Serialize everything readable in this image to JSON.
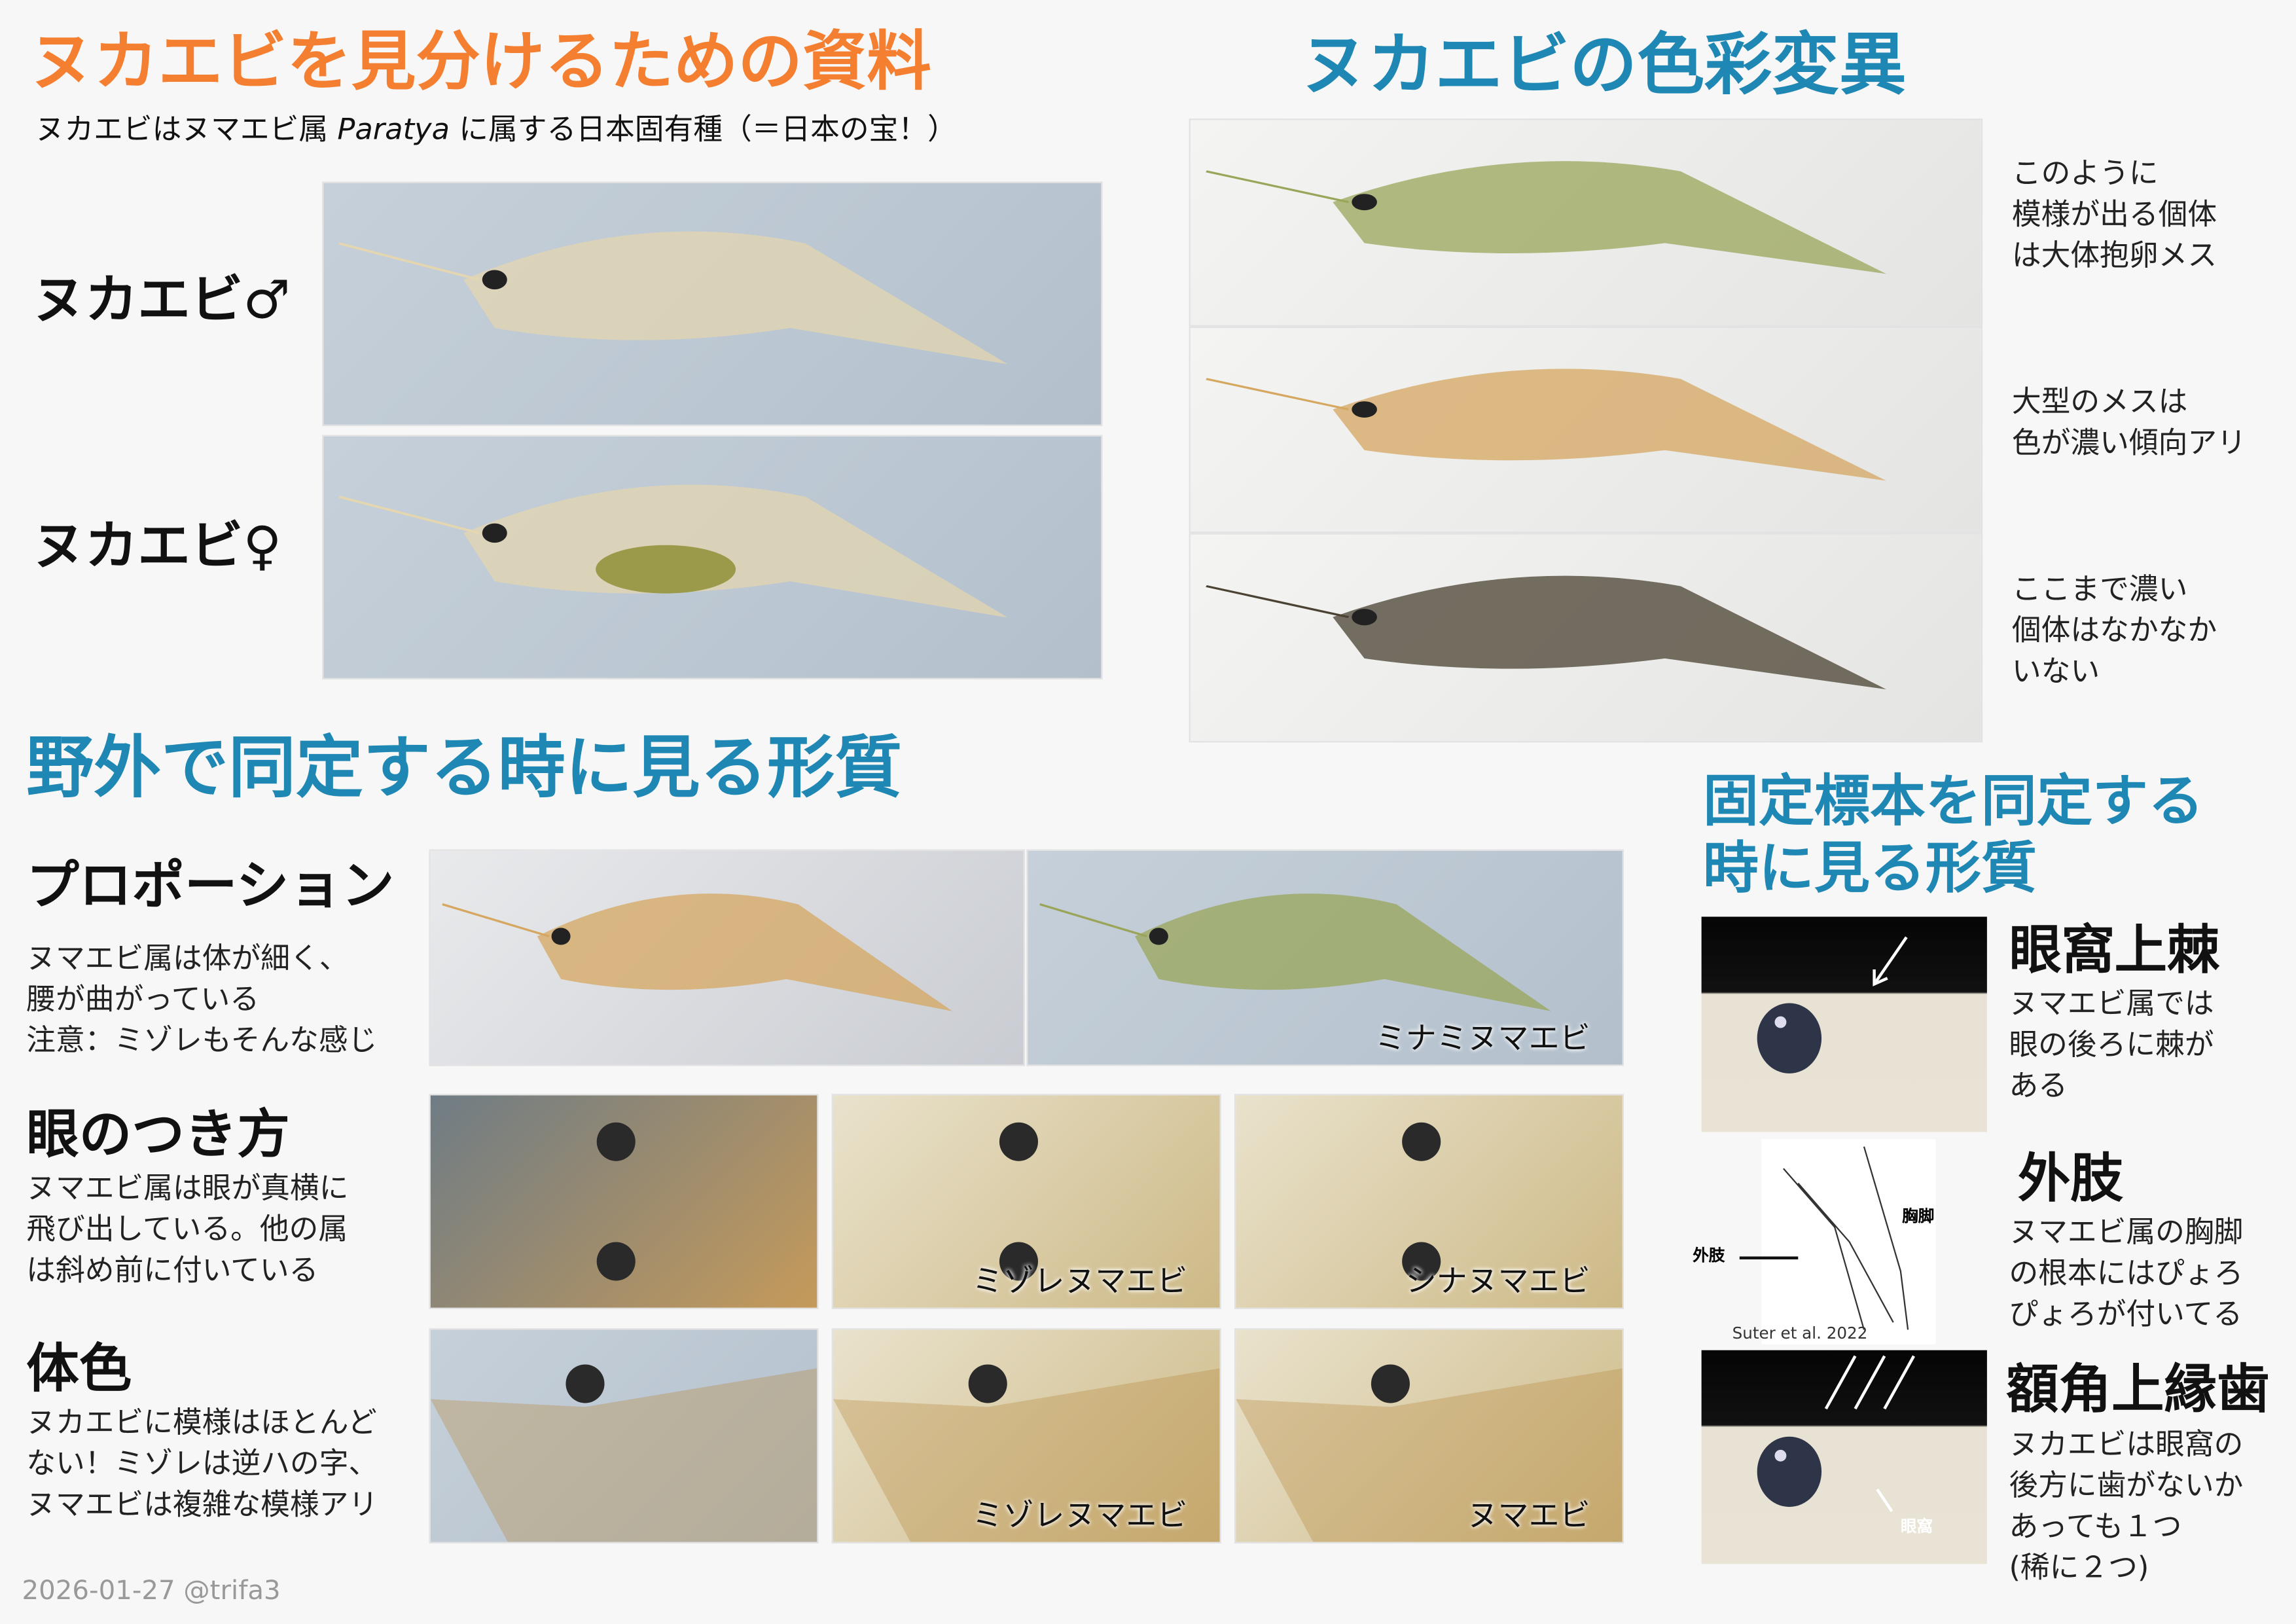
{
  "header": {
    "title": "ヌカエビを見分けるための資料",
    "subtitle_pre": "ヌカエビはヌマエビ属 ",
    "subtitle_genus": "Paratya",
    "subtitle_post": " に属する日本固有種（＝日本の宝！）"
  },
  "sex": {
    "male_label": "ヌカエビ♂",
    "female_label": "ヌカエビ♀"
  },
  "color_variation": {
    "title": "ヌカエビの色彩変異",
    "notes": [
      [
        "このように",
        "模様が出る個体",
        "は大体抱卵メス"
      ],
      [
        "大型のメスは",
        "色が濃い傾向アリ"
      ],
      [
        "ここまで濃い",
        "個体はなかなか",
        "いない"
      ]
    ]
  },
  "field": {
    "title": "野外で同定する時に見る形質",
    "sections": [
      {
        "heading": "プロポーション",
        "lines": [
          "ヌマエビ属は体が細く、",
          "腰が曲がっている",
          "注意：ミゾレもそんな感じ"
        ],
        "captions": [
          "",
          "ミナミヌマエビ"
        ]
      },
      {
        "heading": "眼のつき方",
        "lines": [
          "ヌマエビ属は眼が真横に",
          "飛び出している。他の属",
          "は斜め前に付いている"
        ],
        "captions": [
          "",
          "ミゾレヌマエビ",
          "シナヌマエビ"
        ]
      },
      {
        "heading": "体色",
        "lines": [
          "ヌカエビに模様はほとんど",
          "ない！ミゾレは逆ハの字、",
          "ヌマエビは複雑な模様アリ"
        ],
        "captions": [
          "",
          "ミゾレヌマエビ",
          "ヌマエビ"
        ]
      }
    ]
  },
  "specimen": {
    "title_lines": [
      "固定標本を同定する",
      "時に見る形質"
    ],
    "sections": [
      {
        "heading": "眼窩上棘",
        "lines": [
          "ヌマエビ属では",
          "眼の後ろに棘が",
          "ある"
        ]
      },
      {
        "heading": "外肢",
        "lines": [
          "ヌマエビ属の胸脚",
          "の根本にはぴょろ",
          "ぴょろが付いてる"
        ],
        "figure_labels": {
          "exopod": "外肢",
          "pereopod": "胸脚",
          "credit": "Suter et al. 2022"
        }
      },
      {
        "heading": "額角上縁歯",
        "lines": [
          "ヌカエビは眼窩の",
          "後方に歯がないか",
          "あっても１つ",
          "(稀に２つ)"
        ],
        "figure_labels": {
          "orbit": "眼窩"
        }
      }
    ]
  },
  "footer": {
    "credit": "2026-01-27 @trifa3"
  },
  "colors": {
    "title_orange": "#f57f30",
    "section_blue": "#1f87b3"
  }
}
